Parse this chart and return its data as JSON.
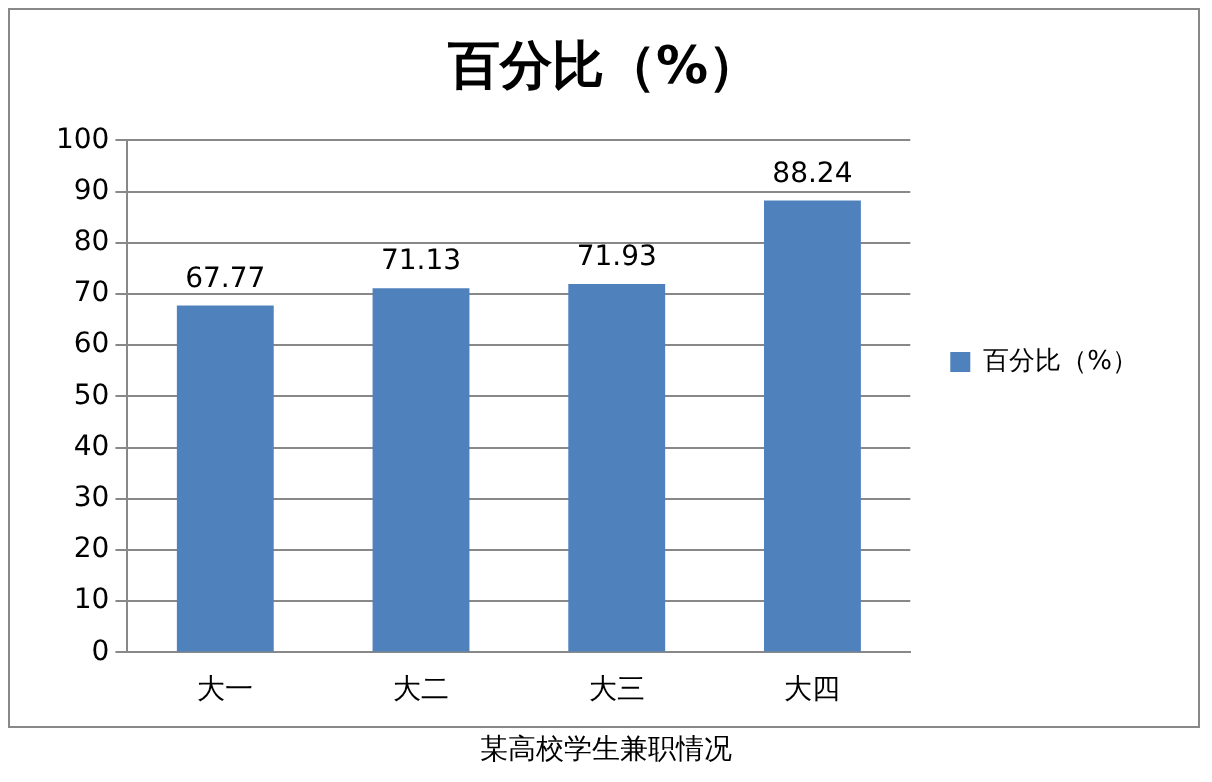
{
  "chart_data": {
    "type": "bar",
    "title": "百分比（%）",
    "categories": [
      "大一",
      "大二",
      "大三",
      "大四"
    ],
    "series": [
      {
        "name": "百分比（%）",
        "color": "#4f81bd",
        "values": [
          67.77,
          71.13,
          71.93,
          88.24
        ]
      }
    ],
    "ylim": [
      0,
      100
    ],
    "yticks": [
      0,
      10,
      20,
      30,
      40,
      50,
      60,
      70,
      80,
      90,
      100
    ],
    "grid": "y",
    "legend": "right",
    "data_labels": true,
    "annotations": [
      "某高校学生兼职情况"
    ]
  }
}
